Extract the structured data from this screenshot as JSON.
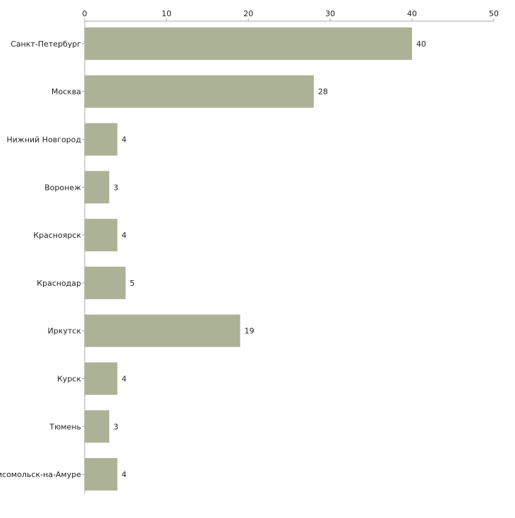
{
  "chart_data": {
    "type": "bar",
    "orientation": "horizontal",
    "title": "",
    "xlabel": "",
    "ylabel": "",
    "xlim": [
      0,
      50
    ],
    "ticks": [
      0,
      10,
      20,
      30,
      40,
      50
    ],
    "tick_labels": [
      "0",
      "10",
      "20",
      "30",
      "40",
      "50"
    ],
    "categories": [
      "Санкт-Петербург",
      "Москва",
      "Нижний Новгород",
      "Воронеж",
      "Красноярск",
      "Краснодар",
      "Иркутск",
      "Курск",
      "Тюмень",
      "Комсомольск-на-Амуре"
    ],
    "values": [
      40,
      28,
      4,
      3,
      4,
      5,
      19,
      4,
      3,
      4
    ],
    "value_labels": [
      "40",
      "28",
      "4",
      "3",
      "4",
      "5",
      "19",
      "4",
      "3",
      "4"
    ],
    "grid": false,
    "legend": "none",
    "colors": {
      "bar": "#acb296",
      "axis": "#aaaaaa",
      "text": "#222222"
    }
  }
}
